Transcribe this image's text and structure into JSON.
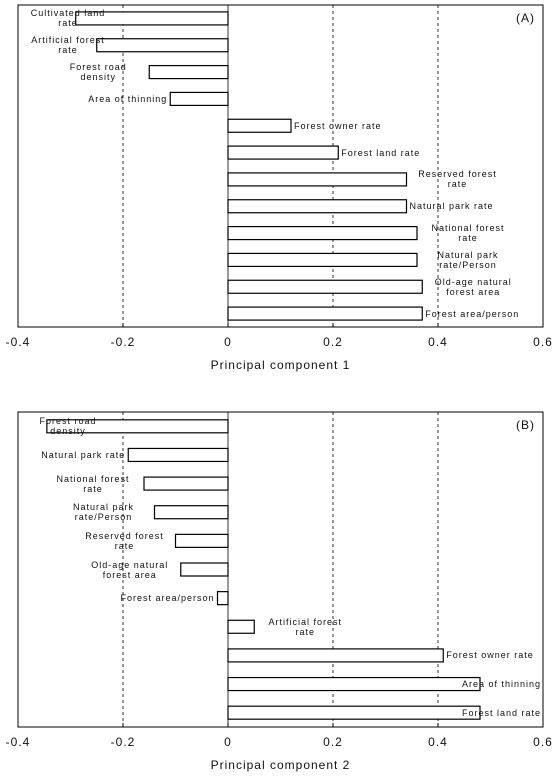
{
  "chart_data": [
    {
      "type": "hbar",
      "panel_label": "(A)",
      "x_label": "Principal component  1",
      "categories": [
        "Cultivated land rate",
        "Artificial forest rate",
        "Forest road density",
        "Area of thinning",
        "Forest owner rate",
        "Forest land rate",
        "Reserved forest rate",
        "Natural park rate",
        "National forest rate",
        "Natural park rate/Person",
        "Old-age natural forest area",
        "Forest area/person"
      ],
      "values": [
        -0.29,
        -0.25,
        -0.15,
        -0.11,
        0.12,
        0.21,
        0.34,
        0.34,
        0.36,
        0.36,
        0.37,
        0.37
      ],
      "color": "#ffffff",
      "xlim": [
        -0.4,
        0.6
      ],
      "xticks": [
        -0.4,
        -0.2,
        0,
        0.2,
        0.4,
        0.6
      ],
      "grid": true
    },
    {
      "type": "hbar",
      "panel_label": "(B)",
      "x_label": "Principal component 2",
      "categories": [
        "Forest road density",
        "Natural park rate",
        "National forest rate",
        "Natural park rate/Person",
        "Reserved forest rate",
        "Old-age natural forest area",
        "Forest area/person",
        "Artificial forest rate",
        "Forest owner rate",
        "Area of thinning",
        "Forest land rate"
      ],
      "values": [
        -0.345,
        -0.19,
        -0.16,
        -0.14,
        -0.1,
        -0.09,
        -0.02,
        0.05,
        0.41,
        0.48,
        0.48
      ],
      "color": "#ffffff",
      "xlim": [
        -0.4,
        0.6
      ],
      "xticks": [
        -0.4,
        -0.2,
        0,
        0.2,
        0.4,
        0.6
      ],
      "grid": true
    }
  ]
}
